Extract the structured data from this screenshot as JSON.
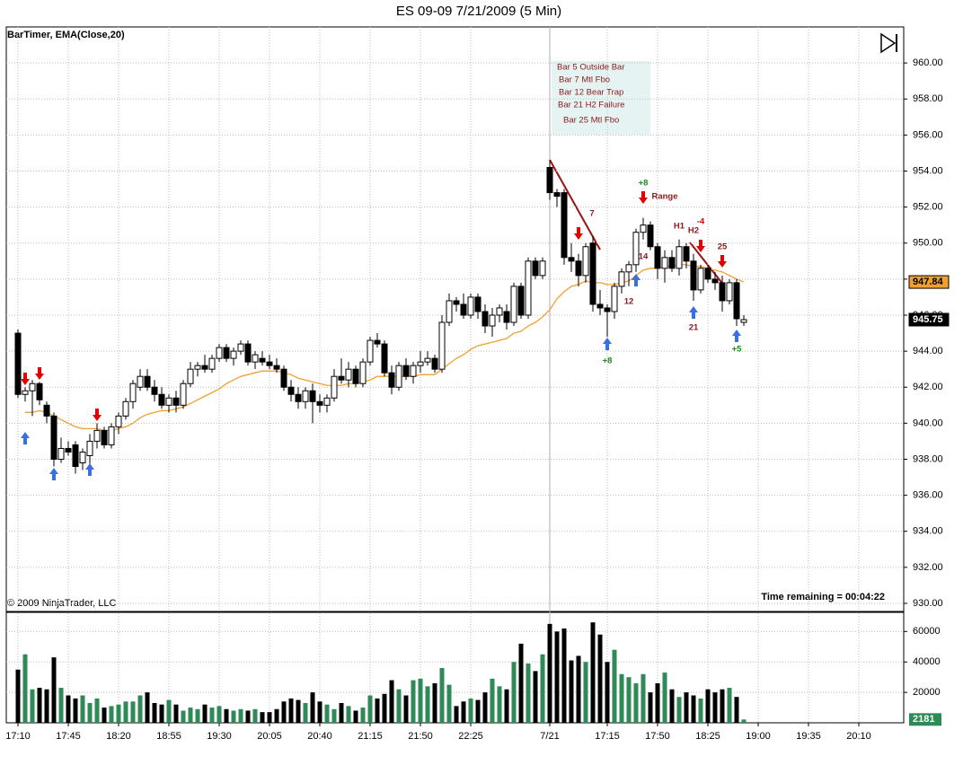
{
  "chart_data": {
    "type": "candlestick",
    "title": "ES 09-09  7/21/2009 (5 Min)",
    "indicator_label": "BarTimer, EMA(Close,20)",
    "copyright": "© 2009 NinjaTrader, LLC",
    "timer": "Time remaining = 00:04:22",
    "up_color": "#ffffff",
    "down_color": "#000000",
    "ema_color": "#f0a030",
    "ylim": [
      929.6,
      962
    ],
    "yticks": [
      {
        "value": 930,
        "label": "930.00"
      },
      {
        "value": 932,
        "label": "932.00"
      },
      {
        "value": 934,
        "label": "934.00"
      },
      {
        "value": 936,
        "label": "936.00"
      },
      {
        "value": 938,
        "label": "938.00"
      },
      {
        "value": 940,
        "label": "940.00"
      },
      {
        "value": 942,
        "label": "942.00"
      },
      {
        "value": 944,
        "label": "944.00"
      },
      {
        "value": 946,
        "label": "946.00"
      },
      {
        "value": 948,
        "label": "948.00"
      },
      {
        "value": 950,
        "label": "950.00"
      },
      {
        "value": 952,
        "label": "952.00"
      },
      {
        "value": 954,
        "label": "954.00"
      },
      {
        "value": 956,
        "label": "956.00"
      },
      {
        "value": 958,
        "label": "958.00"
      },
      {
        "value": 960,
        "label": "960.00"
      }
    ],
    "xlim": [
      -1.625,
      123.25
    ],
    "xticks": [
      {
        "value": 0,
        "label": "17:10"
      },
      {
        "value": 7,
        "label": "17:45"
      },
      {
        "value": 14,
        "label": "18:20"
      },
      {
        "value": 21,
        "label": "18:55"
      },
      {
        "value": 28,
        "label": "19:30"
      },
      {
        "value": 35,
        "label": "20:05"
      },
      {
        "value": 42,
        "label": "20:40"
      },
      {
        "value": 49,
        "label": "21:15"
      },
      {
        "value": 56,
        "label": "21:50"
      },
      {
        "value": 63,
        "label": "22:25"
      },
      {
        "value": 74,
        "label": "7/21"
      },
      {
        "value": 82,
        "label": "17:15"
      },
      {
        "value": 89,
        "label": "17:50"
      },
      {
        "value": 96,
        "label": "18:25"
      },
      {
        "value": 103,
        "label": "19:00"
      },
      {
        "value": 110,
        "label": "19:35"
      },
      {
        "value": 117,
        "label": "20:10"
      }
    ],
    "grid": true,
    "open": [
      945.0,
      941.6,
      941.8,
      942.2,
      941.0,
      940.4,
      938.0,
      938.6,
      938.8,
      937.8,
      938.2,
      939.0,
      939.6,
      938.8,
      939.8,
      940.4,
      941.2,
      942.0,
      942.6,
      942.0,
      941.6,
      941.0,
      941.4,
      941.0,
      942.2,
      943.0,
      943.2,
      943.0,
      943.6,
      944.2,
      943.6,
      944.0,
      944.4,
      943.4,
      943.6,
      943.4,
      943.2,
      943.0,
      942.0,
      941.6,
      941.2,
      941.8,
      941.2,
      941.0,
      941.4,
      942.6,
      942.4,
      943.0,
      942.2,
      943.4,
      944.6,
      944.4,
      942.8,
      942.0,
      943.2,
      942.6,
      943.2,
      943.4,
      943.6,
      943.0,
      945.6,
      946.8,
      946.6,
      946.0,
      947.0,
      946.2,
      945.4,
      946.0,
      946.2,
      945.6,
      947.6,
      946.0,
      949.0,
      948.2,
      954.2,
      952.8,
      952.8,
      949.2,
      949.0,
      948.2,
      950.0,
      946.6,
      946.4,
      946.2,
      947.6,
      948.4,
      948.8,
      950.6,
      951.0,
      949.8,
      948.6,
      949.2,
      948.6,
      949.8,
      949.0,
      947.4,
      948.6,
      948.0,
      947.8,
      946.8,
      947.8,
      945.6
    ],
    "high": [
      945.2,
      942.0,
      942.4,
      942.3,
      941.2,
      940.6,
      939.2,
      939.0,
      939.0,
      938.6,
      939.4,
      940.0,
      939.8,
      940.0,
      940.6,
      941.4,
      942.4,
      943.0,
      943.0,
      942.4,
      942.0,
      941.6,
      941.8,
      942.4,
      943.4,
      943.4,
      943.8,
      943.8,
      944.4,
      944.4,
      944.2,
      944.6,
      944.6,
      944.0,
      944.0,
      943.8,
      943.6,
      943.2,
      942.4,
      942.0,
      942.0,
      942.2,
      941.6,
      941.6,
      943.0,
      943.6,
      943.4,
      943.2,
      943.6,
      944.8,
      945.0,
      944.6,
      943.2,
      943.4,
      943.6,
      943.4,
      944.0,
      944.0,
      943.8,
      946.0,
      947.2,
      947.0,
      947.2,
      947.2,
      947.2,
      946.6,
      946.4,
      946.6,
      946.6,
      947.8,
      947.8,
      949.2,
      949.2,
      949.2,
      954.6,
      953.0,
      953.0,
      950.0,
      949.4,
      950.0,
      950.4,
      947.4,
      946.6,
      947.8,
      948.6,
      949.0,
      950.8,
      951.4,
      951.2,
      950.0,
      949.6,
      949.6,
      950.2,
      950.0,
      949.4,
      948.8,
      948.8,
      948.4,
      948.2,
      948.0,
      948.0,
      946.0
    ],
    "low": [
      941.4,
      941.2,
      940.4,
      941.0,
      940.0,
      937.6,
      937.8,
      938.2,
      937.2,
      937.4,
      937.6,
      938.6,
      938.6,
      938.6,
      939.4,
      940.2,
      940.8,
      941.8,
      941.8,
      941.2,
      940.8,
      940.6,
      940.6,
      940.8,
      942.0,
      942.6,
      942.8,
      942.8,
      943.4,
      943.4,
      943.2,
      943.8,
      943.2,
      943.0,
      943.2,
      943.0,
      942.8,
      941.8,
      941.2,
      940.8,
      940.8,
      940.0,
      940.6,
      940.6,
      941.2,
      942.2,
      942.0,
      942.0,
      942.0,
      943.2,
      944.2,
      942.6,
      941.6,
      941.8,
      942.4,
      942.2,
      942.8,
      943.2,
      942.8,
      942.8,
      945.4,
      946.2,
      945.8,
      945.8,
      945.8,
      945.0,
      944.8,
      945.6,
      945.2,
      945.4,
      945.8,
      945.8,
      948.0,
      948.0,
      952.4,
      952.0,
      948.8,
      948.4,
      947.6,
      947.8,
      946.2,
      946.0,
      944.8,
      945.8,
      947.2,
      947.6,
      948.4,
      950.2,
      949.6,
      948.0,
      947.8,
      948.4,
      948.2,
      948.6,
      946.8,
      947.2,
      947.8,
      947.4,
      946.2,
      946.6,
      945.4,
      945.4
    ],
    "close": [
      941.6,
      941.8,
      942.2,
      941.3,
      940.4,
      938.0,
      938.6,
      938.4,
      937.6,
      938.4,
      939.0,
      939.6,
      938.8,
      939.8,
      940.4,
      941.2,
      942.2,
      942.6,
      942.0,
      941.6,
      941.0,
      941.4,
      941.0,
      942.2,
      943.0,
      943.2,
      943.0,
      943.6,
      944.2,
      943.6,
      944.0,
      944.4,
      943.4,
      943.8,
      943.4,
      943.2,
      943.0,
      942.0,
      941.6,
      941.2,
      941.8,
      941.2,
      941.0,
      941.4,
      942.6,
      942.4,
      943.0,
      942.2,
      943.4,
      944.6,
      944.4,
      942.8,
      942.0,
      943.2,
      942.6,
      943.2,
      943.4,
      943.6,
      943.0,
      945.6,
      946.8,
      946.6,
      946.0,
      947.0,
      946.2,
      945.4,
      946.0,
      946.4,
      945.6,
      947.6,
      946.0,
      949.0,
      948.2,
      949.0,
      952.8,
      952.6,
      949.2,
      949.0,
      948.2,
      949.8,
      946.6,
      946.4,
      946.2,
      947.6,
      948.4,
      948.8,
      950.6,
      951.0,
      949.8,
      948.6,
      949.2,
      948.6,
      949.8,
      949.0,
      947.4,
      948.6,
      948.0,
      947.8,
      946.8,
      947.8,
      945.8,
      945.75
    ],
    "ema": [
      null,
      940.6,
      940.6,
      940.7,
      940.6,
      940.4,
      940.2,
      940.0,
      939.8,
      939.7,
      939.7,
      939.7,
      939.6,
      939.6,
      939.7,
      939.8,
      940.0,
      940.3,
      940.5,
      940.6,
      940.7,
      940.7,
      940.8,
      940.9,
      941.1,
      941.3,
      941.5,
      941.7,
      941.9,
      942.2,
      942.4,
      942.6,
      942.7,
      942.8,
      942.9,
      942.9,
      942.9,
      942.8,
      942.7,
      942.5,
      942.4,
      942.3,
      942.2,
      942.1,
      942.1,
      942.1,
      942.2,
      942.2,
      942.3,
      942.4,
      942.6,
      942.6,
      942.6,
      942.6,
      942.6,
      942.6,
      942.7,
      942.7,
      942.7,
      943.0,
      943.3,
      943.6,
      943.8,
      944.1,
      944.3,
      944.4,
      944.5,
      944.6,
      944.7,
      945.0,
      945.1,
      945.4,
      945.6,
      945.9,
      946.3,
      946.9,
      947.3,
      947.6,
      947.7,
      947.9,
      947.8,
      947.8,
      947.7,
      947.7,
      947.8,
      947.9,
      948.2,
      948.5,
      948.6,
      948.6,
      948.7,
      948.7,
      948.8,
      948.8,
      948.7,
      948.7,
      948.6,
      948.5,
      948.4,
      948.2,
      948.0,
      947.84
    ],
    "volume": {
      "up_color": "#2e8b57",
      "down_color": "#000000",
      "ylim": [
        0,
        72000
      ],
      "yticks": [
        20000,
        40000,
        60000
      ],
      "values": [
        35000,
        45000,
        22000,
        23000,
        22000,
        43000,
        23000,
        18000,
        16000,
        18000,
        13000,
        16000,
        10000,
        11000,
        12000,
        14000,
        14000,
        18000,
        20000,
        13000,
        12000,
        15000,
        12000,
        8000,
        10000,
        9000,
        12000,
        10000,
        11000,
        9000,
        8000,
        9000,
        8000,
        9000,
        7000,
        7000,
        9000,
        14000,
        16000,
        15000,
        13000,
        20000,
        14000,
        12000,
        9000,
        13000,
        11000,
        8000,
        10000,
        18000,
        16000,
        19000,
        28000,
        22000,
        18000,
        28000,
        29000,
        24000,
        26000,
        36000,
        25000,
        11000,
        14000,
        16000,
        15000,
        20000,
        29000,
        24000,
        22000,
        40000,
        52000,
        39000,
        34000,
        45000,
        65000,
        60000,
        62000,
        41000,
        44000,
        40000,
        66000,
        58000,
        40000,
        48000,
        32000,
        30000,
        26000,
        32000,
        20000,
        26000,
        33000,
        22000,
        17000,
        20000,
        18000,
        16000,
        22000,
        20000,
        22000,
        23000,
        17000,
        2181
      ]
    },
    "notes": [
      "Bar 5 Outside Bar",
      "Bar 7 Mtl Fbo",
      "Bar 12 Bear Trap",
      "Bar 21 H2 Failure",
      "Bar 25 Mtl Fbo"
    ],
    "annotations": [
      {
        "text": "7",
        "color": "#8b1a1a"
      },
      {
        "text": "12",
        "color": "#8b1a1a"
      },
      {
        "text": "14",
        "color": "#8b1a1a"
      },
      {
        "text": "+8",
        "color": "#1a8a1a"
      },
      {
        "text": "Range",
        "color": "#8b1a1a"
      },
      {
        "text": "H1",
        "color": "#8b1a1a"
      },
      {
        "text": "H2",
        "color": "#8b1a1a"
      },
      {
        "text": "-4",
        "color": "#dd0000"
      },
      {
        "text": "25",
        "color": "#8b1a1a"
      },
      {
        "text": "21",
        "color": "#8b1a1a"
      },
      {
        "text": "+5",
        "color": "#1a8a1a"
      },
      {
        "text": "+8",
        "color": "#1a8a1a"
      }
    ]
  }
}
